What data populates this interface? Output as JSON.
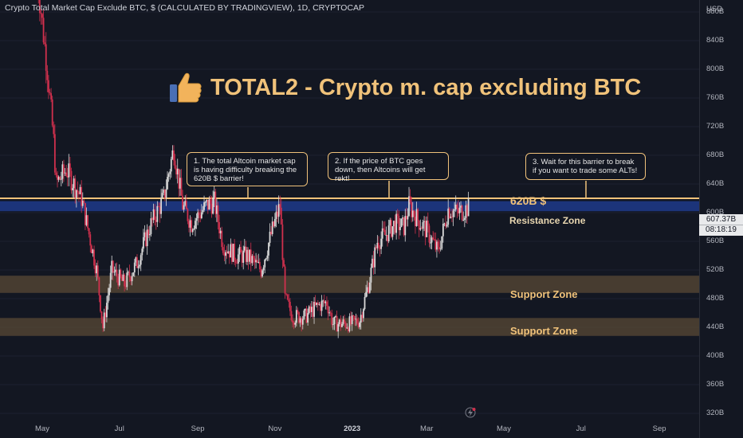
{
  "header": {
    "title": "Crypto Total Market Cap Exclude BTC, $ (CALCULATED BY TRADINGVIEW), 1D, CRYPTOCAP"
  },
  "currency": "USD",
  "banner": {
    "icon": "thumbs-up-icon",
    "text": "TOTAL2 - Crypto m. cap excluding BTC"
  },
  "callouts": [
    {
      "text": "1. The total Altcoin market cap is having difficulty breaking the 620B $ barrier!"
    },
    {
      "text": "2. If the price of BTC goes down, then Altcoins will get rekt!"
    },
    {
      "text": "3. Wait for this barrier to break if you want to trade some ALTs!"
    }
  ],
  "level_label": "620B $",
  "zones": [
    {
      "label": "Resistance Zone",
      "low": 602,
      "high": 616,
      "color": "#1e3a8a"
    },
    {
      "label": "Support Zone",
      "low": 488,
      "high": 512,
      "color": "#5a4a36"
    },
    {
      "label": "Support Zone",
      "low": 428,
      "high": 453,
      "color": "#5a4a36"
    }
  ],
  "price_tag": {
    "value": "607.37B",
    "time": "08:18:19"
  },
  "colors": {
    "up": "#d9d9d9",
    "down": "#d0304d",
    "accent": "#f0c27a",
    "background": "#131722"
  },
  "chart_data": {
    "type": "candlestick",
    "title": "Crypto Total Market Cap Exclude BTC, $ (CALCULATED BY TRADINGVIEW), 1D, CRYPTOCAP",
    "ylabel": "USD",
    "ylim": [
      305,
      925
    ],
    "y_ticks": [
      "880B",
      "840B",
      "800B",
      "760B",
      "720B",
      "680B",
      "640B",
      "600B",
      "560B",
      "520B",
      "480B",
      "440B",
      "400B",
      "360B",
      "320B"
    ],
    "x_ticks": [
      {
        "label": "May",
        "bold": false
      },
      {
        "label": "Jul",
        "bold": false
      },
      {
        "label": "Sep",
        "bold": false
      },
      {
        "label": "Nov",
        "bold": false
      },
      {
        "label": "2023",
        "bold": true
      },
      {
        "label": "Mar",
        "bold": false
      },
      {
        "label": "May",
        "bold": false
      },
      {
        "label": "Jul",
        "bold": false
      },
      {
        "label": "Sep",
        "bold": false
      }
    ],
    "x_range": [
      "2022-04-19",
      "2023-09-30"
    ],
    "resistance_level": 620,
    "last_price": 607.37,
    "series": [
      {
        "values": [
          [
            "2022-04-27",
            930
          ],
          [
            "2022-05-05",
            800
          ],
          [
            "2022-05-10",
            700
          ],
          [
            "2022-05-12",
            640
          ],
          [
            "2022-05-20",
            660
          ],
          [
            "2022-06-01",
            620
          ],
          [
            "2022-06-13",
            520
          ],
          [
            "2022-06-18",
            440
          ],
          [
            "2022-06-25",
            520
          ],
          [
            "2022-07-05",
            500
          ],
          [
            "2022-07-15",
            530
          ],
          [
            "2022-07-25",
            580
          ],
          [
            "2022-08-05",
            620
          ],
          [
            "2022-08-13",
            690
          ],
          [
            "2022-08-20",
            610
          ],
          [
            "2022-08-27",
            585
          ],
          [
            "2022-09-08",
            610
          ],
          [
            "2022-09-14",
            615
          ],
          [
            "2022-09-21",
            555
          ],
          [
            "2022-10-01",
            540
          ],
          [
            "2022-10-10",
            540
          ],
          [
            "2022-10-21",
            520
          ],
          [
            "2022-10-29",
            570
          ],
          [
            "2022-11-05",
            610
          ],
          [
            "2022-11-09",
            480
          ],
          [
            "2022-11-15",
            455
          ],
          [
            "2022-11-25",
            455
          ],
          [
            "2022-12-05",
            470
          ],
          [
            "2022-12-12",
            475
          ],
          [
            "2022-12-17",
            445
          ],
          [
            "2022-12-25",
            445
          ],
          [
            "2022-12-31",
            445
          ],
          [
            "2023-01-07",
            450
          ],
          [
            "2023-01-14",
            500
          ],
          [
            "2023-01-21",
            560
          ],
          [
            "2023-01-28",
            570
          ],
          [
            "2023-02-04",
            585
          ],
          [
            "2023-02-11",
            580
          ],
          [
            "2023-02-15",
            610
          ],
          [
            "2023-02-22",
            590
          ],
          [
            "2023-03-01",
            575
          ],
          [
            "2023-03-10",
            545
          ],
          [
            "2023-03-14",
            575
          ],
          [
            "2023-03-18",
            605
          ],
          [
            "2023-03-26",
            600
          ],
          [
            "2023-04-03",
            607
          ]
        ]
      }
    ]
  }
}
